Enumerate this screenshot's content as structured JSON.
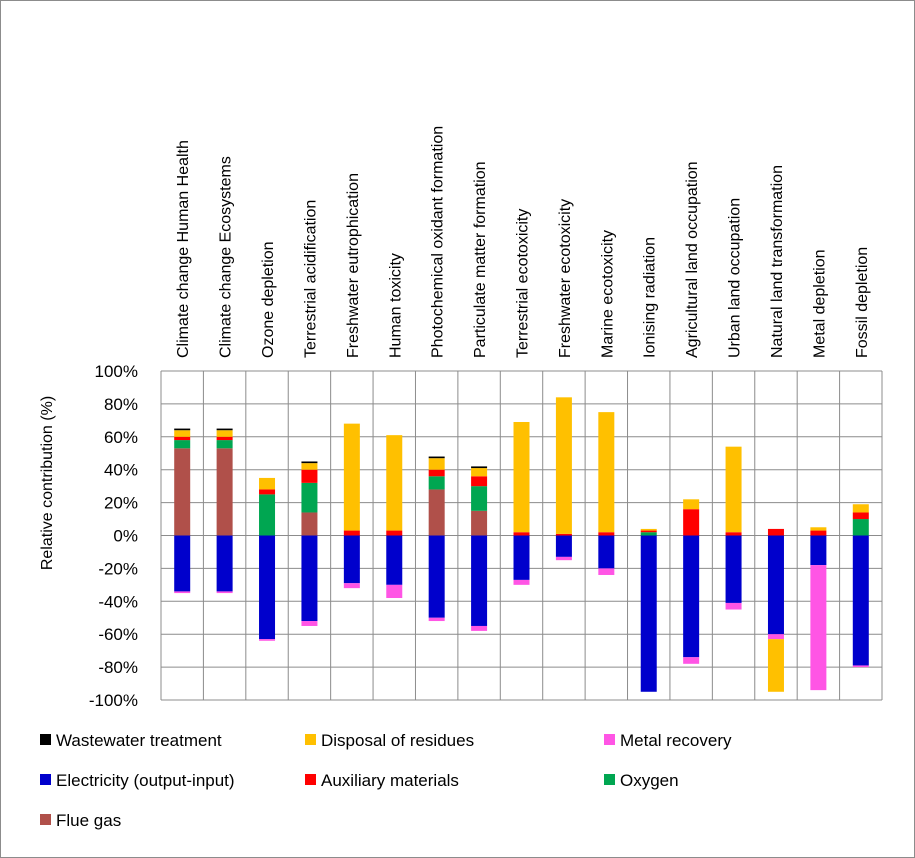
{
  "chart_data": {
    "type": "bar",
    "stacked": true,
    "title": "",
    "xlabel": "",
    "ylabel": "Relative contribution (%)",
    "ylim": [
      -100,
      100
    ],
    "yticks": [
      100,
      80,
      60,
      40,
      20,
      0,
      -20,
      -40,
      -60,
      -80,
      -100
    ],
    "ytick_labels": [
      "100%",
      "80%",
      "60%",
      "40%",
      "20%",
      "0%",
      "-20%",
      "-40%",
      "-60%",
      "-80%",
      "-100%"
    ],
    "grid": true,
    "legend_position": "bottom",
    "categories": [
      "Climate change Human Health",
      "Climate change Ecosystems",
      "Ozone depletion",
      "Terrestrial acidification",
      "Freshwater eutrophication",
      "Human toxicity",
      "Photochemical oxidant formation",
      "Particulate matter formation",
      "Terrestrial ecotoxicity",
      "Freshwater ecotoxicity",
      "Marine ecotoxicity",
      "Ionising radiation",
      "Agricultural land occupation",
      "Urban land occupation",
      "Natural land transformation",
      "Metal depletion",
      "Fossil depletion"
    ],
    "series": [
      {
        "name": "Flue gas",
        "color": "#b0504a",
        "values": [
          53,
          53,
          0,
          14,
          0,
          0,
          28,
          15,
          0,
          0,
          0,
          0,
          0,
          0,
          0,
          0,
          0
        ]
      },
      {
        "name": "Oxygen",
        "color": "#00a651",
        "values": [
          5,
          5,
          25,
          18,
          0,
          0,
          8,
          15,
          0,
          0,
          0,
          2,
          0,
          0,
          0,
          0,
          10
        ]
      },
      {
        "name": "Auxiliary materials",
        "color": "#ff0000",
        "values": [
          2,
          2,
          3,
          8,
          3,
          3,
          4,
          6,
          2,
          1,
          2,
          1,
          16,
          2,
          4,
          3,
          4
        ]
      },
      {
        "name": "Disposal of residues",
        "color": "#ffc000",
        "values": [
          4,
          4,
          7,
          4,
          65,
          58,
          7,
          5,
          67,
          83,
          73,
          1,
          6,
          52,
          0,
          2,
          5
        ]
      },
      {
        "name": "Wastewater treatment",
        "color": "#000000",
        "values": [
          1,
          1,
          0,
          1,
          0,
          0,
          1,
          1,
          0,
          0,
          0,
          0,
          0,
          0,
          0,
          0,
          0
        ]
      },
      {
        "name": "Electricity (output-input)",
        "color": "#0000cc",
        "values": [
          -34,
          -34,
          -63,
          -52,
          -29,
          -30,
          -50,
          -55,
          -27,
          -13,
          -20,
          -95,
          -74,
          -41,
          -60,
          -18,
          -79
        ]
      },
      {
        "name": "Metal recovery",
        "color": "#ff55e5",
        "values": [
          -1,
          -1,
          -1,
          -3,
          -3,
          -8,
          -2,
          -3,
          -3,
          -2,
          -4,
          0,
          -4,
          -4,
          -3,
          -76,
          -1
        ]
      },
      {
        "name": "Disposal of residues (negative)",
        "color": "#ffc000",
        "values": [
          0,
          0,
          0,
          0,
          0,
          0,
          0,
          0,
          0,
          0,
          0,
          0,
          0,
          0,
          -32,
          0,
          0
        ]
      }
    ],
    "legend": [
      {
        "label": "Wastewater treatment",
        "color": "#000000"
      },
      {
        "label": "Disposal of residues",
        "color": "#ffc000"
      },
      {
        "label": "Metal recovery",
        "color": "#ff55e5"
      },
      {
        "label": "Electricity (output-input)",
        "color": "#0000cc"
      },
      {
        "label": "Auxiliary materials",
        "color": "#ff0000"
      },
      {
        "label": "Oxygen",
        "color": "#00a651"
      },
      {
        "label": "Flue gas",
        "color": "#b0504a"
      }
    ]
  }
}
